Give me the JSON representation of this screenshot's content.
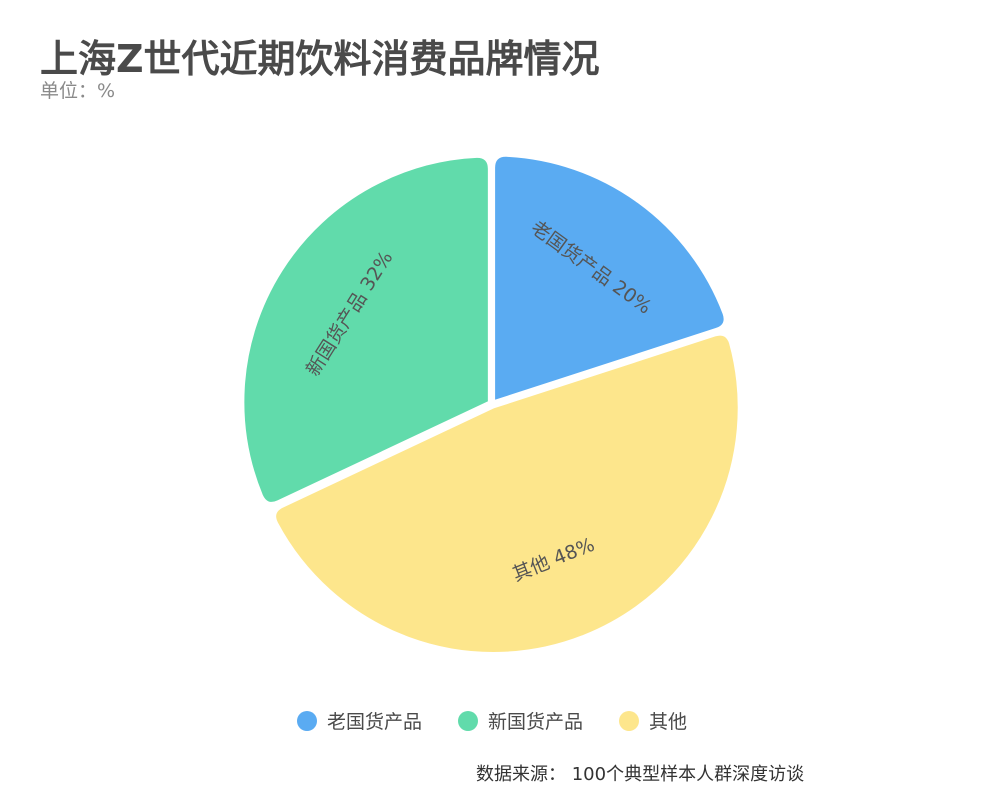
{
  "title": "上海Z世代近期饮料消费品牌情况",
  "unit": "单位：%",
  "source": "数据来源： 100个典型样本人群深度访谈",
  "chart_data": {
    "type": "pie",
    "slices": [
      {
        "label": "老国货产品",
        "value": 20,
        "value_text": "20%",
        "color": "#5aabf2"
      },
      {
        "label": "其他",
        "value": 48,
        "value_text": "48%",
        "color": "#fde68c"
      },
      {
        "label": "新国货产品",
        "value": 32,
        "value_text": "32%",
        "color": "#61dbab"
      }
    ],
    "legend": [
      {
        "label": "老国货产品",
        "color": "#5aabf2"
      },
      {
        "label": "新国货产品",
        "color": "#61dbab"
      },
      {
        "label": "其他",
        "color": "#fde68c"
      }
    ],
    "legend_position": "bottom"
  }
}
